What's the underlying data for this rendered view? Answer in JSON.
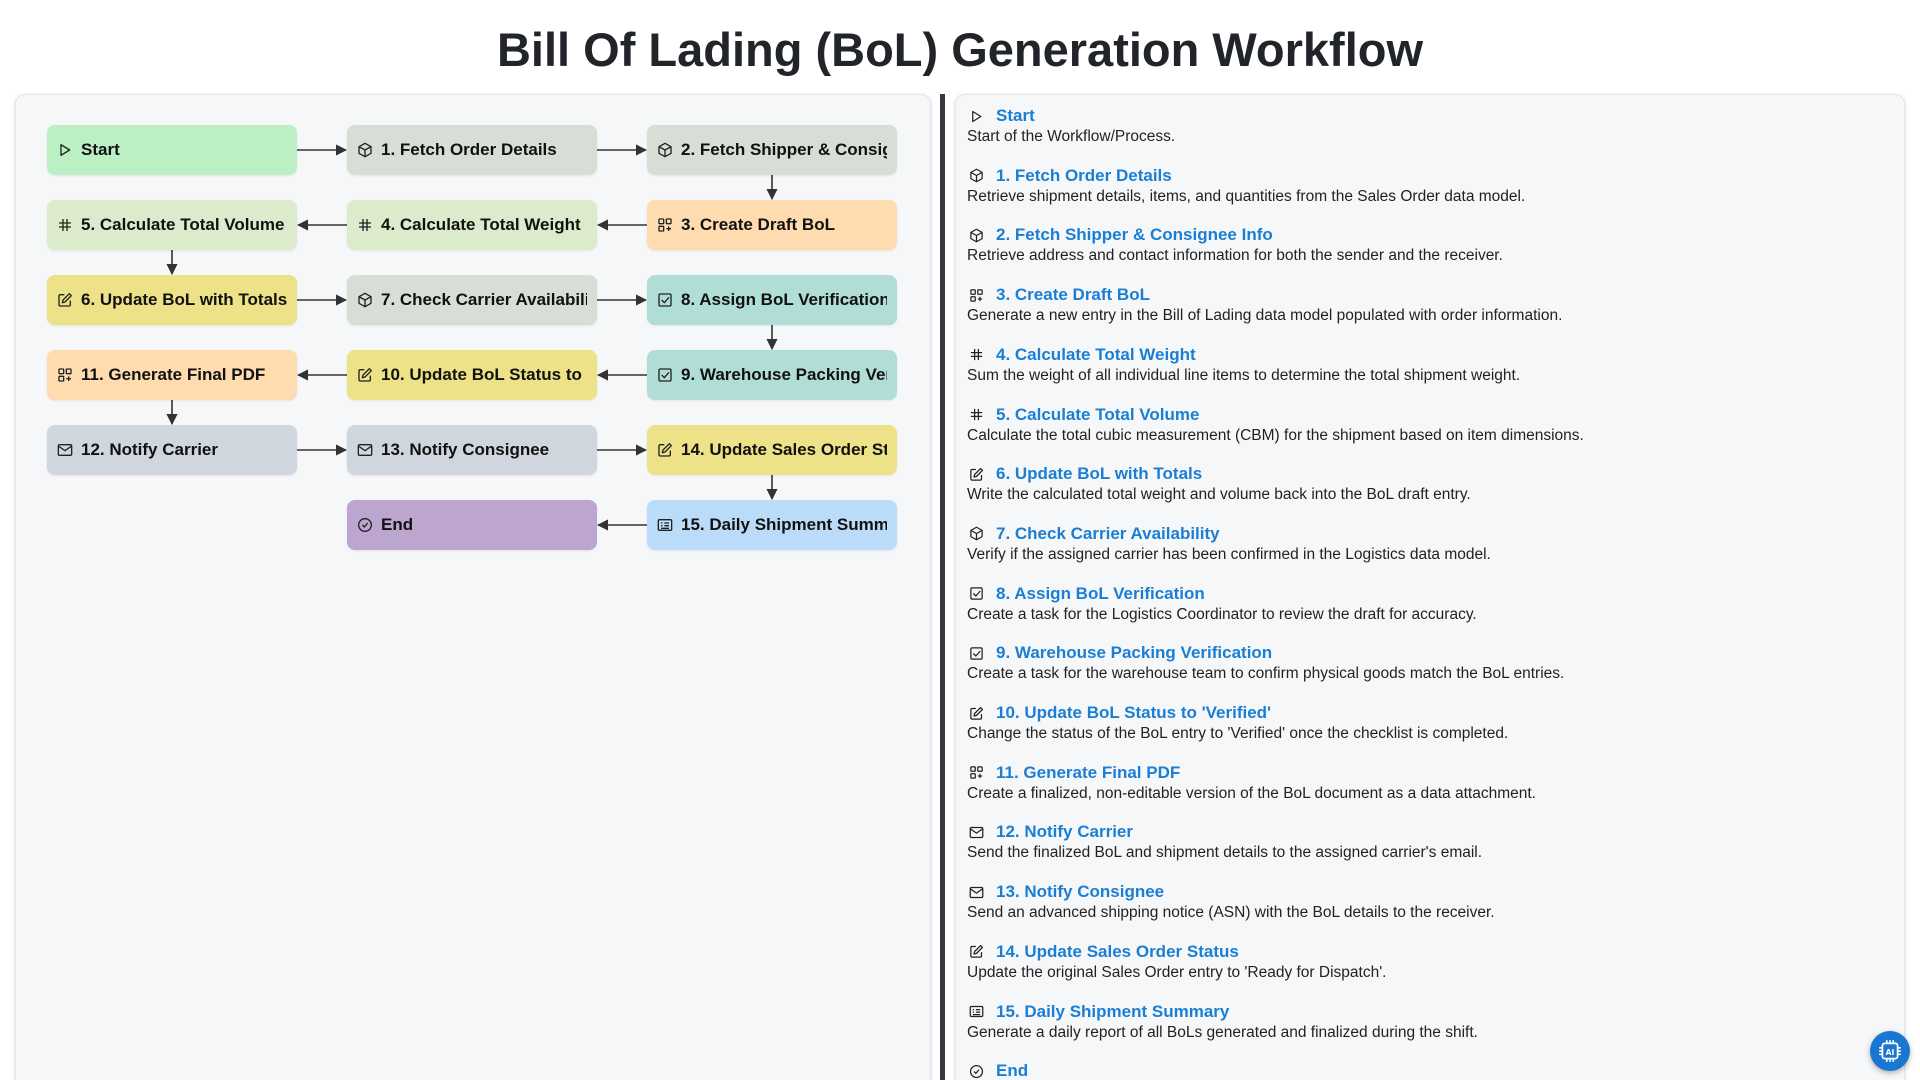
{
  "page": {
    "title": "Bill Of Lading (BoL) Generation Workflow"
  },
  "colors": {
    "green": "#bbf0c5",
    "gray": "#d6ded6",
    "orange": "#fedcb0",
    "lime": "#dbebcb",
    "yellow": "#ede287",
    "teal": "#b1ddd7",
    "slate": "#d0d6dd",
    "purple": "#bca6cf",
    "blue": "#bbdcf8",
    "link": "#1a7fd4",
    "fab": "#1976d2"
  },
  "nodes": [
    {
      "id": "start",
      "label": "Start",
      "icon": "play-icon",
      "color": "#bbf0c5"
    },
    {
      "id": "s1",
      "label": "1. Fetch Order Details",
      "icon": "cube-icon",
      "color": "#d6ded6"
    },
    {
      "id": "s2",
      "label": "2. Fetch Shipper & Consignee Info",
      "icon": "cube-icon",
      "color": "#d6ded6"
    },
    {
      "id": "s3",
      "label": "3. Create Draft BoL",
      "icon": "grid-plus-icon",
      "color": "#fedcb0"
    },
    {
      "id": "s4",
      "label": "4. Calculate Total Weight",
      "icon": "hash-icon",
      "color": "#dbebcb"
    },
    {
      "id": "s5",
      "label": "5. Calculate Total Volume",
      "icon": "hash-icon",
      "color": "#dbebcb"
    },
    {
      "id": "s6",
      "label": "6. Update BoL with Totals",
      "icon": "edit-icon",
      "color": "#ede287"
    },
    {
      "id": "s7",
      "label": "7. Check Carrier Availability",
      "icon": "cube-icon",
      "color": "#d6ded6"
    },
    {
      "id": "s8",
      "label": "8. Assign BoL Verification",
      "icon": "checkbox-icon",
      "color": "#b1ddd7"
    },
    {
      "id": "s9",
      "label": "9. Warehouse Packing Verification",
      "icon": "checkbox-icon",
      "color": "#b1ddd7"
    },
    {
      "id": "s10",
      "label": "10. Update BoL Status to 'Verified'",
      "icon": "edit-icon",
      "color": "#ede287"
    },
    {
      "id": "s11",
      "label": "11. Generate Final PDF",
      "icon": "grid-plus-icon",
      "color": "#fedcb0"
    },
    {
      "id": "s12",
      "label": "12. Notify Carrier",
      "icon": "mail-icon",
      "color": "#d0d6dd"
    },
    {
      "id": "s13",
      "label": "13. Notify Consignee",
      "icon": "mail-icon",
      "color": "#d0d6dd"
    },
    {
      "id": "s14",
      "label": "14. Update Sales Order Status",
      "icon": "edit-icon",
      "color": "#ede287"
    },
    {
      "id": "s15",
      "label": "15. Daily Shipment Summary",
      "icon": "report-icon",
      "color": "#bbdcf8"
    },
    {
      "id": "end",
      "label": "End",
      "icon": "check-circle-icon",
      "color": "#bca6cf"
    }
  ],
  "edges": [
    [
      "start",
      "s1"
    ],
    [
      "s1",
      "s2"
    ],
    [
      "s2",
      "s3"
    ],
    [
      "s3",
      "s4"
    ],
    [
      "s4",
      "s5"
    ],
    [
      "s5",
      "s6"
    ],
    [
      "s6",
      "s7"
    ],
    [
      "s7",
      "s8"
    ],
    [
      "s8",
      "s9"
    ],
    [
      "s9",
      "s10"
    ],
    [
      "s10",
      "s11"
    ],
    [
      "s11",
      "s12"
    ],
    [
      "s12",
      "s13"
    ],
    [
      "s13",
      "s14"
    ],
    [
      "s14",
      "s15"
    ],
    [
      "s15",
      "end"
    ]
  ],
  "descriptions": [
    {
      "title": "Start",
      "icon": "play-icon",
      "text": "Start of the Workflow/Process."
    },
    {
      "title": "1. Fetch Order Details",
      "icon": "cube-icon",
      "text": "Retrieve shipment details, items, and quantities from the Sales Order data model."
    },
    {
      "title": "2. Fetch Shipper & Consignee Info",
      "icon": "cube-icon",
      "text": "Retrieve address and contact information for both the sender and the receiver."
    },
    {
      "title": "3. Create Draft BoL",
      "icon": "grid-plus-icon",
      "text": "Generate a new entry in the Bill of Lading data model populated with order information."
    },
    {
      "title": "4. Calculate Total Weight",
      "icon": "hash-icon",
      "text": "Sum the weight of all individual line items to determine the total shipment weight."
    },
    {
      "title": "5. Calculate Total Volume",
      "icon": "hash-icon",
      "text": "Calculate the total cubic measurement (CBM) for the shipment based on item dimensions."
    },
    {
      "title": "6. Update BoL with Totals",
      "icon": "edit-icon",
      "text": "Write the calculated total weight and volume back into the BoL draft entry."
    },
    {
      "title": "7. Check Carrier Availability",
      "icon": "cube-icon",
      "text": "Verify if the assigned carrier has been confirmed in the Logistics data model."
    },
    {
      "title": "8. Assign BoL Verification",
      "icon": "checkbox-icon",
      "text": "Create a task for the Logistics Coordinator to review the draft for accuracy."
    },
    {
      "title": "9. Warehouse Packing Verification",
      "icon": "checkbox-icon",
      "text": "Create a task for the warehouse team to confirm physical goods match the BoL entries."
    },
    {
      "title": "10. Update BoL Status to 'Verified'",
      "icon": "edit-icon",
      "text": "Change the status of the BoL entry to 'Verified' once the checklist is completed."
    },
    {
      "title": "11. Generate Final PDF",
      "icon": "grid-plus-icon",
      "text": "Create a finalized, non-editable version of the BoL document as a data attachment."
    },
    {
      "title": "12. Notify Carrier",
      "icon": "mail-icon",
      "text": "Send the finalized BoL and shipment details to the assigned carrier's email."
    },
    {
      "title": "13. Notify Consignee",
      "icon": "mail-icon",
      "text": "Send an advanced shipping notice (ASN) with the BoL details to the receiver."
    },
    {
      "title": "14. Update Sales Order Status",
      "icon": "edit-icon",
      "text": "Update the original Sales Order entry to 'Ready for Dispatch'."
    },
    {
      "title": "15. Daily Shipment Summary",
      "icon": "report-icon",
      "text": "Generate a daily report of all BoLs generated and finalized during the shift."
    },
    {
      "title": "End",
      "icon": "check-circle-icon",
      "text": ""
    }
  ],
  "fab": {
    "icon": "ai-chip-icon"
  }
}
